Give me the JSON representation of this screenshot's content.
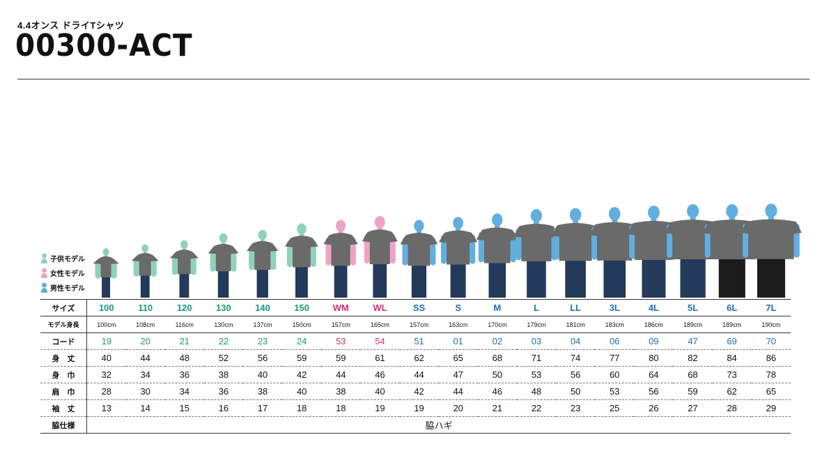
{
  "header": {
    "subtitle": "4.4オンス ドライTシャツ",
    "title": "00300-ACT"
  },
  "legend": [
    {
      "label": "子供モデル",
      "icon": "kid-model-icon",
      "color": "#8fd1bd"
    },
    {
      "label": "女性モデル",
      "icon": "woman-model-icon",
      "color": "#f0a2c6"
    },
    {
      "label": "男性モデル",
      "icon": "man-model-icon",
      "color": "#62aee0"
    }
  ],
  "colors": {
    "kids": "#1a9a78",
    "women": "#d6307a",
    "men": "#1c6fbd",
    "shirt": "#6a6a6a"
  },
  "table": {
    "row_labels": {
      "size": "サイズ",
      "height": "モデル身長",
      "code": "コード",
      "length": "身　丈",
      "width": "身　巾",
      "shoulder": "肩　巾",
      "sleeve": "袖　丈",
      "side": "脇仕様"
    },
    "sizes": [
      "100",
      "110",
      "120",
      "130",
      "140",
      "150",
      "WM",
      "WL",
      "SS",
      "S",
      "M",
      "L",
      "LL",
      "3L",
      "4L",
      "5L",
      "6L",
      "7L"
    ],
    "groups": [
      "kids",
      "kids",
      "kids",
      "kids",
      "kids",
      "kids",
      "women",
      "women",
      "men",
      "men",
      "men",
      "men",
      "men",
      "men",
      "men",
      "men",
      "men",
      "men"
    ],
    "heights": [
      "100cm",
      "108cm",
      "116cm",
      "130cm",
      "137cm",
      "150cm",
      "157cm",
      "165cm",
      "157cm",
      "163cm",
      "170cm",
      "179cm",
      "181cm",
      "183cm",
      "186cm",
      "189cm",
      "189cm",
      "190cm"
    ],
    "codes": [
      "19",
      "20",
      "21",
      "22",
      "23",
      "24",
      "53",
      "54",
      "51",
      "01",
      "02",
      "03",
      "04",
      "06",
      "09",
      "47",
      "69",
      "70"
    ],
    "length": [
      "40",
      "44",
      "48",
      "52",
      "56",
      "59",
      "59",
      "61",
      "62",
      "65",
      "68",
      "71",
      "74",
      "77",
      "80",
      "82",
      "84",
      "86"
    ],
    "width": [
      "32",
      "34",
      "36",
      "38",
      "40",
      "42",
      "44",
      "46",
      "44",
      "47",
      "50",
      "53",
      "56",
      "60",
      "64",
      "68",
      "73",
      "78"
    ],
    "shoulder": [
      "28",
      "30",
      "34",
      "36",
      "38",
      "40",
      "38",
      "40",
      "42",
      "44",
      "46",
      "48",
      "50",
      "53",
      "56",
      "59",
      "62",
      "65"
    ],
    "sleeve": [
      "13",
      "14",
      "15",
      "16",
      "17",
      "18",
      "18",
      "19",
      "19",
      "20",
      "21",
      "22",
      "23",
      "25",
      "26",
      "27",
      "28",
      "29"
    ],
    "side_value": "脇ハギ"
  }
}
